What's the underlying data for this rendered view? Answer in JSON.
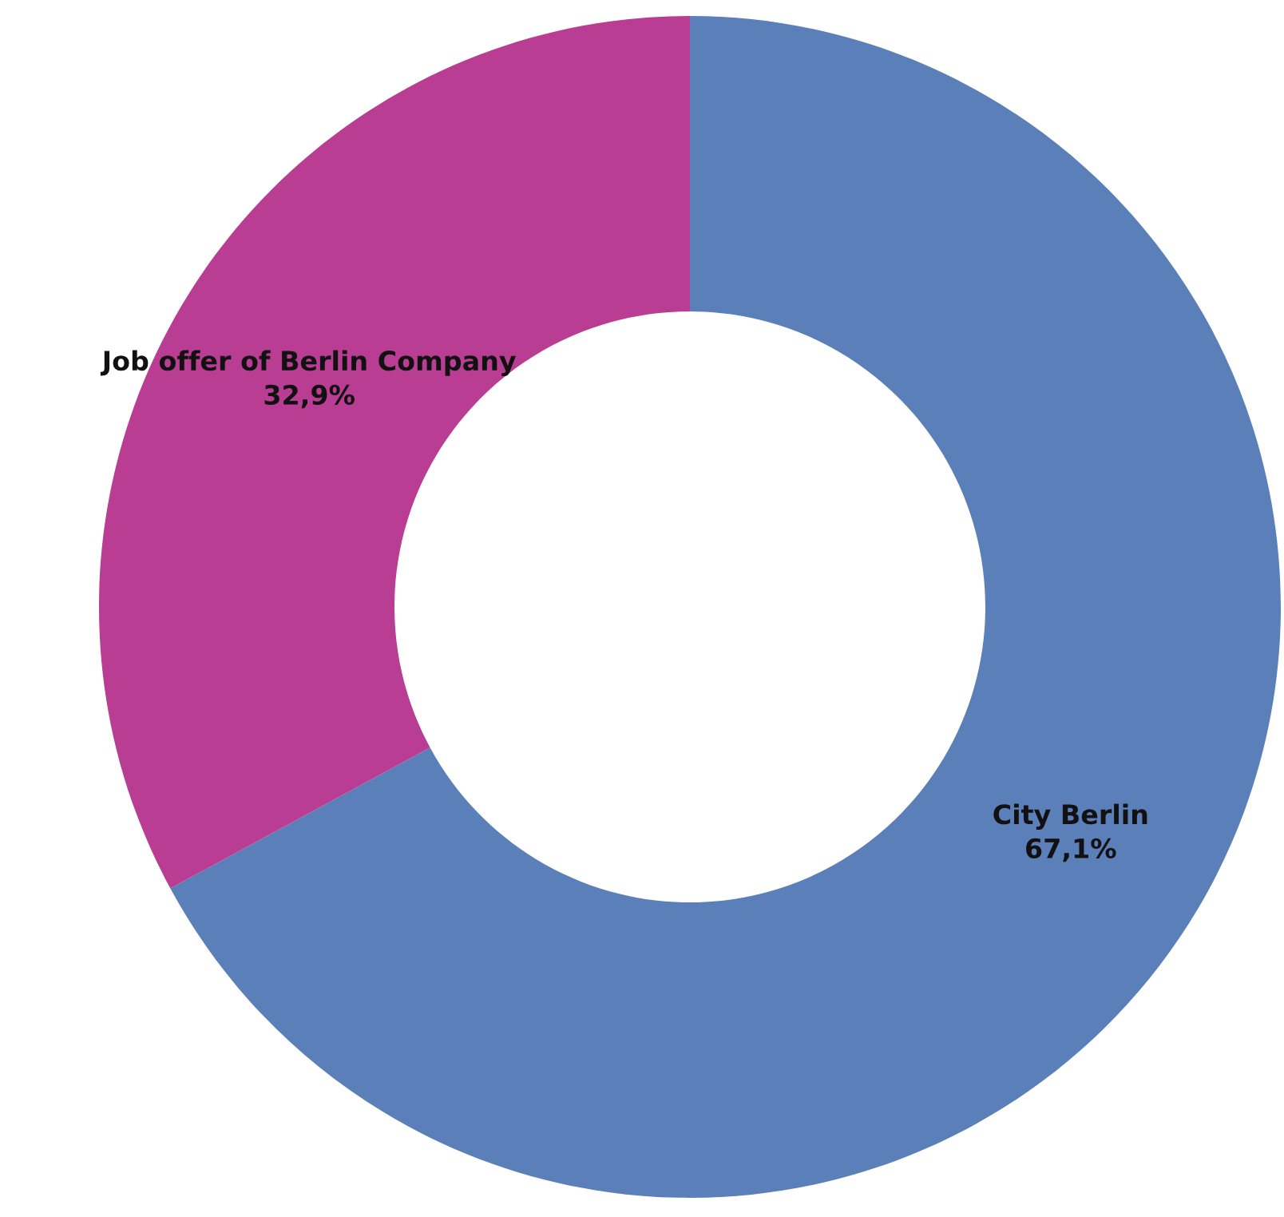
{
  "chart_data": {
    "type": "donut",
    "categories": [
      "City Berlin",
      "Job offer of Berlin Company"
    ],
    "values": [
      67.1,
      32.9
    ],
    "value_labels": [
      "67,1%",
      "32,9%"
    ],
    "colors": [
      "#5b7fb8",
      "#b83d93"
    ],
    "legend": false
  }
}
